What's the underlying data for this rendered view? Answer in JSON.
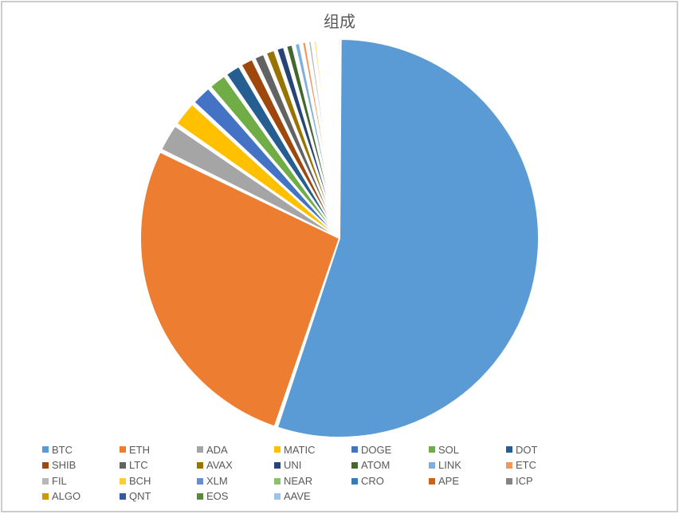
{
  "chart": {
    "type": "pie",
    "title": "组成",
    "title_fontsize": 20,
    "title_color": "#595959",
    "background_color": "#ffffff",
    "border_color": "#cccccc",
    "radius": 250,
    "slice_gap_deg": 0.8,
    "stroke_color": "#ffffff",
    "stroke_width": 2,
    "slices": [
      {
        "label": "BTC",
        "value": 55.0,
        "color": "#5b9bd5"
      },
      {
        "label": "ETH",
        "value": 27.0,
        "color": "#ed7d31"
      },
      {
        "label": "ADA",
        "value": 2.4,
        "color": "#a5a5a5"
      },
      {
        "label": "MATIC",
        "value": 2.2,
        "color": "#ffc000"
      },
      {
        "label": "DOGE",
        "value": 1.8,
        "color": "#4472c4"
      },
      {
        "label": "SOL",
        "value": 1.6,
        "color": "#70ad47"
      },
      {
        "label": "DOT",
        "value": 1.4,
        "color": "#255e91"
      },
      {
        "label": "SHIB",
        "value": 1.2,
        "color": "#9e480e"
      },
      {
        "label": "LTC",
        "value": 1.0,
        "color": "#636363"
      },
      {
        "label": "AVAX",
        "value": 0.9,
        "color": "#997300"
      },
      {
        "label": "UNI",
        "value": 0.8,
        "color": "#264478"
      },
      {
        "label": "ATOM",
        "value": 0.7,
        "color": "#43682b"
      },
      {
        "label": "LINK",
        "value": 0.6,
        "color": "#7cafdd"
      },
      {
        "label": "ETC",
        "value": 0.5,
        "color": "#f1975a"
      },
      {
        "label": "FIL",
        "value": 0.45,
        "color": "#b7b7b7"
      },
      {
        "label": "BCH",
        "value": 0.4,
        "color": "#ffcd33"
      },
      {
        "label": "XLM",
        "value": 0.35,
        "color": "#698ed0"
      },
      {
        "label": "NEAR",
        "value": 0.3,
        "color": "#8cc168"
      },
      {
        "label": "CRO",
        "value": 0.25,
        "color": "#327dc2"
      },
      {
        "label": "APE",
        "value": 0.22,
        "color": "#d26012"
      },
      {
        "label": "ICP",
        "value": 0.18,
        "color": "#848484"
      },
      {
        "label": "ALGO",
        "value": 0.15,
        "color": "#cc9a00"
      },
      {
        "label": "QNT",
        "value": 0.12,
        "color": "#335aa1"
      },
      {
        "label": "EOS",
        "value": 0.1,
        "color": "#5a8a39"
      },
      {
        "label": "AAVE",
        "value": 0.08,
        "color": "#9dc3e6"
      }
    ],
    "legend": {
      "fontsize": 13,
      "text_color": "#595959",
      "swatch_size": 8,
      "items_per_row": 9
    }
  }
}
